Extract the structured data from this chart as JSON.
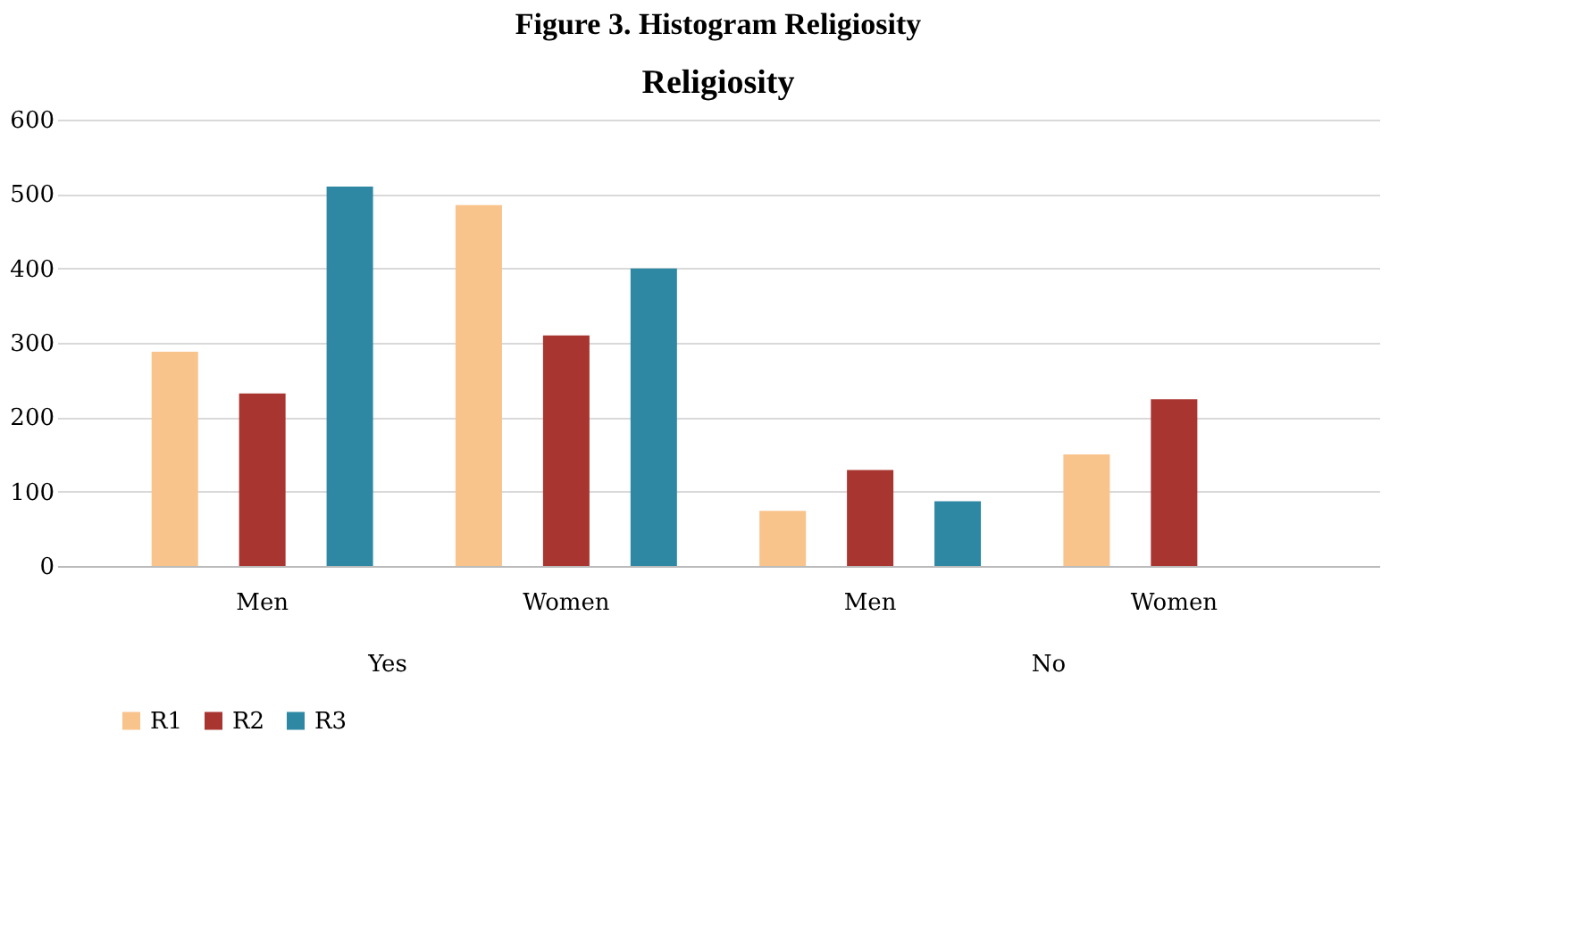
{
  "chart_data": {
    "type": "bar",
    "title": "Figure 3. Histogram Religiosity",
    "subtitle": "Religiosity",
    "categories": [
      "Men",
      "Women",
      "Men",
      "Women"
    ],
    "annotations": [
      "Yes",
      "No"
    ],
    "series": [
      {
        "name": "R1",
        "color": "#f9c38c",
        "values": [
          288,
          485,
          74,
          150
        ]
      },
      {
        "name": "R2",
        "color": "#a8352f",
        "values": [
          232,
          310,
          129,
          224
        ]
      },
      {
        "name": "R3",
        "color": "#2e88a4",
        "values": [
          510,
          400,
          87,
          null
        ]
      }
    ],
    "ylim": [
      0,
      600
    ],
    "yticks": [
      0,
      100,
      200,
      300,
      400,
      500,
      600
    ],
    "grid": "y",
    "legend": "bottom"
  }
}
